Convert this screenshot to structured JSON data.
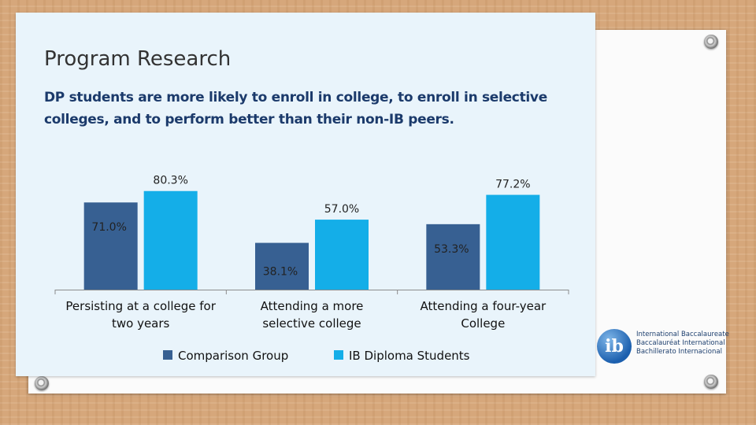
{
  "slide": {
    "title": "Program Research",
    "subtitle": "DP students are more likely to enroll in college, to enroll in selective colleges, and to perform better than their non-IB peers."
  },
  "chart_data": {
    "type": "bar",
    "categories": [
      [
        "Persisting at a college for",
        "two years"
      ],
      [
        "Attending a more",
        "selective college"
      ],
      [
        "Attending a four-year",
        "College"
      ]
    ],
    "series": [
      {
        "name": "Comparison Group",
        "values": [
          71.0,
          38.1,
          53.3
        ],
        "labels": [
          "71.0%",
          "38.1%",
          "53.3%"
        ],
        "color": "#376092"
      },
      {
        "name": "IB Diploma Students",
        "values": [
          80.3,
          57.0,
          77.2
        ],
        "labels": [
          "80.3%",
          "57.0%",
          "77.2%"
        ],
        "color": "#14aee8"
      }
    ],
    "ylim": [
      0,
      100
    ],
    "legend_position": "bottom",
    "grid": false
  },
  "logo": {
    "lines": [
      "International Baccalaureate",
      "Baccalauréat International",
      "Bachillerato Internacional"
    ],
    "mark": "ib"
  }
}
